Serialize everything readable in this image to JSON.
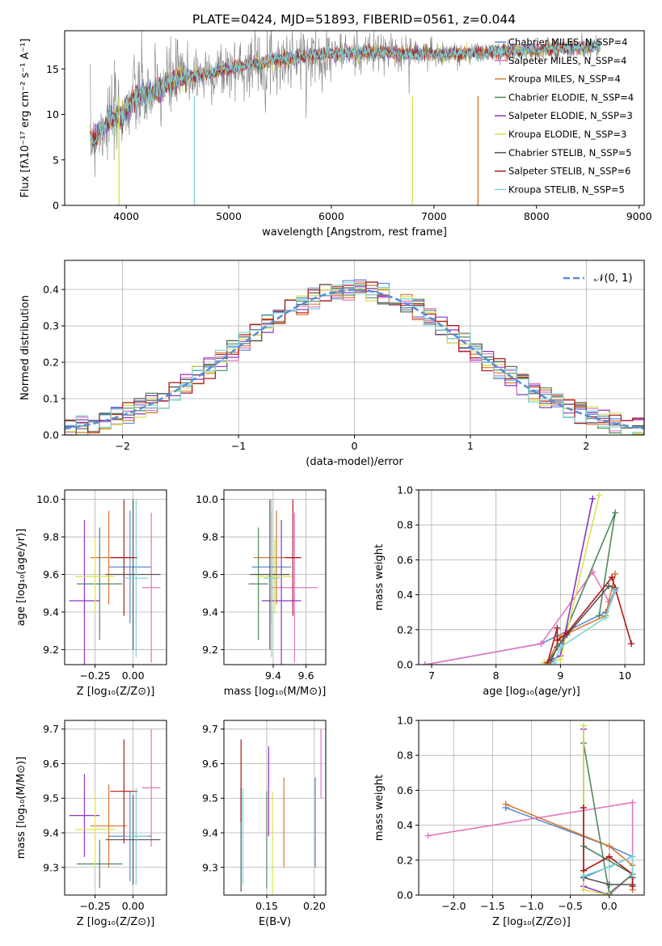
{
  "title": "PLATE=0424, MJD=51893, FIBERID=0561, z=0.044",
  "colors": {
    "Chabrier MILES": "#5b8dd6",
    "Salpeter MILES": "#e377c2",
    "Kroupa MILES": "#d9782d",
    "Chabrier ELODIE": "#4e8a5c",
    "Salpeter ELODIE": "#8e35c4",
    "Kroupa ELODIE": "#d8e350",
    "Chabrier STELIB": "#555555",
    "Salpeter STELIB": "#b01818",
    "Kroupa STELIB": "#7fd3d8",
    "data": "#7f7f7f"
  },
  "chart_data": [
    {
      "type": "line",
      "panel": "spectrum",
      "xlabel": "wavelength [Angstrom, rest frame]",
      "ylabel": "Flux [fλ10⁻¹⁷ erg cm⁻² s⁻¹ A⁻¹]",
      "xlim": [
        3400,
        9050
      ],
      "ylim": [
        0,
        19.2
      ],
      "xticks": [
        4000,
        5000,
        6000,
        7000,
        8000,
        9000
      ],
      "yticks": [
        0,
        5,
        10,
        15
      ],
      "spectrum_envelope": {
        "x": [
          3650,
          3800,
          3950,
          4100,
          4300,
          4500,
          4800,
          5200,
          5600,
          6000,
          6500,
          7000,
          7500,
          7900,
          8300,
          8600
        ],
        "y": [
          7,
          9,
          10,
          12,
          12.5,
          14,
          14.5,
          15.5,
          16.2,
          16.7,
          16.8,
          16.6,
          16.8,
          17.0,
          17.2,
          17.5
        ]
      },
      "legend_entries": [
        "Chabrier MILES, N_SSP=4",
        "Salpeter MILES, N_SSP=4",
        "Kroupa MILES, N_SSP=4",
        "Chabrier ELODIE, N_SSP=4",
        "Salpeter ELODIE, N_SSP=3",
        "Kroupa ELODIE, N_SSP=3",
        "Chabrier STELIB, N_SSP=5",
        "Salpeter STELIB, N_SSP=6",
        "Kroupa STELIB, N_SSP=5"
      ],
      "legend_placement": "top-right",
      "grid": false
    },
    {
      "type": "histogram",
      "panel": "residuals",
      "xlabel": "(data-model)/error",
      "ylabel": "Normed distribution",
      "xlim": [
        -2.5,
        2.5
      ],
      "ylim": [
        0,
        0.48
      ],
      "xticks": [
        -2,
        -1,
        0,
        1,
        2
      ],
      "yticks": [
        0.0,
        0.1,
        0.2,
        0.3,
        0.4
      ],
      "bin_width": 0.1,
      "reference_curve": "N(0,1)",
      "legend_entries": [
        "𝒩(0, 1)"
      ],
      "legend_placement": "top-right",
      "grid": true
    },
    {
      "type": "scatter",
      "panel": "age-vs-Z",
      "xlabel": "Z [log₁₀(Z/Z⊙)]",
      "ylabel": "age  [log₁₀(age/yr)]",
      "xlim": [
        -0.45,
        0.22
      ],
      "ylim": [
        9.12,
        10.05
      ],
      "xticks": [
        -0.25,
        0.0
      ],
      "yticks": [
        9.2,
        9.4,
        9.6,
        9.8,
        10.0
      ],
      "points": [
        {
          "model": "Chabrier MILES",
          "x": -0.02,
          "y": 9.64,
          "xerr": 0.14,
          "yerr": 0.3
        },
        {
          "model": "Salpeter MILES",
          "x": 0.12,
          "y": 9.53,
          "xerr": 0.06,
          "yerr": 0.4
        },
        {
          "model": "Kroupa MILES",
          "x": -0.16,
          "y": 9.69,
          "xerr": 0.12,
          "yerr": 0.25
        },
        {
          "model": "Chabrier ELODIE",
          "x": -0.22,
          "y": 9.55,
          "xerr": 0.15,
          "yerr": 0.3
        },
        {
          "model": "Salpeter ELODIE",
          "x": -0.32,
          "y": 9.46,
          "xerr": 0.1,
          "yerr": 0.43
        },
        {
          "model": "Kroupa ELODIE",
          "x": -0.25,
          "y": 9.59,
          "xerr": 0.13,
          "yerr": 0.2
        },
        {
          "model": "Chabrier STELIB",
          "x": 0.0,
          "y": 9.6,
          "xerr": 0.18,
          "yerr": 0.4
        },
        {
          "model": "Salpeter STELIB",
          "x": -0.06,
          "y": 9.69,
          "xerr": 0.09,
          "yerr": 0.31
        },
        {
          "model": "Kroupa STELIB",
          "x": 0.02,
          "y": 9.58,
          "xerr": 0.08,
          "yerr": 0.42
        }
      ],
      "grid": true
    },
    {
      "type": "scatter",
      "panel": "age-vs-mass",
      "xlabel": "mass [log₁₀(M/M⊙)]",
      "ylabel": "",
      "xlim": [
        9.1,
        9.72
      ],
      "ylim": [
        9.12,
        10.05
      ],
      "xticks": [
        9.4,
        9.6
      ],
      "yticks": [
        9.2,
        9.4,
        9.6,
        9.8,
        10.0
      ],
      "points": [
        {
          "model": "Chabrier MILES",
          "x": 9.39,
          "y": 9.64,
          "xerr": 0.12,
          "yerr": 0.3
        },
        {
          "model": "Salpeter MILES",
          "x": 9.53,
          "y": 9.53,
          "xerr": 0.14,
          "yerr": 0.4
        },
        {
          "model": "Kroupa MILES",
          "x": 9.42,
          "y": 9.69,
          "xerr": 0.14,
          "yerr": 0.25
        },
        {
          "model": "Chabrier ELODIE",
          "x": 9.31,
          "y": 9.55,
          "xerr": 0.06,
          "yerr": 0.3
        },
        {
          "model": "Salpeter ELODIE",
          "x": 9.45,
          "y": 9.46,
          "xerr": 0.12,
          "yerr": 0.43
        },
        {
          "model": "Kroupa ELODIE",
          "x": 9.41,
          "y": 9.59,
          "xerr": 0.11,
          "yerr": 0.2
        },
        {
          "model": "Chabrier STELIB",
          "x": 9.38,
          "y": 9.6,
          "xerr": 0.12,
          "yerr": 0.4
        },
        {
          "model": "Salpeter STELIB",
          "x": 9.52,
          "y": 9.69,
          "xerr": 0.05,
          "yerr": 0.31
        },
        {
          "model": "Kroupa STELIB",
          "x": 9.39,
          "y": 9.58,
          "xerr": 0.05,
          "yerr": 0.42
        }
      ],
      "grid": true
    },
    {
      "type": "line",
      "panel": "mass-weight-vs-age",
      "xlabel": "age  [log₁₀(age/yr)]",
      "ylabel": "mass weight",
      "xlim": [
        6.8,
        10.3
      ],
      "ylim": [
        0,
        1.0
      ],
      "xticks": [
        7,
        8,
        9,
        10
      ],
      "yticks": [
        0.0,
        0.2,
        0.4,
        0.6,
        0.8,
        1.0
      ],
      "series": [
        {
          "name": "Chabrier MILES",
          "x": [
            6.9,
            8.7,
            9.7,
            9.85
          ],
          "y": [
            0.0,
            0.12,
            0.3,
            0.43
          ]
        },
        {
          "name": "Salpeter MILES",
          "x": [
            6.9,
            8.7,
            9.5,
            9.75
          ],
          "y": [
            0.0,
            0.12,
            0.53,
            0.36
          ]
        },
        {
          "name": "Kroupa MILES",
          "x": [
            8.8,
            9.0,
            9.7,
            9.85
          ],
          "y": [
            0.01,
            0.16,
            0.28,
            0.52
          ]
        },
        {
          "name": "Chabrier ELODIE",
          "x": [
            8.8,
            9.0,
            9.85,
            9.6
          ],
          "y": [
            0.01,
            0.12,
            0.87,
            0.28
          ]
        },
        {
          "name": "Salpeter ELODIE",
          "x": [
            8.75,
            9.0,
            9.5
          ],
          "y": [
            0.01,
            0.05,
            0.95
          ]
        },
        {
          "name": "Kroupa ELODIE",
          "x": [
            8.75,
            9.0,
            9.6
          ],
          "y": [
            0.01,
            0.03,
            0.97
          ]
        },
        {
          "name": "Chabrier STELIB",
          "x": [
            8.85,
            8.95,
            9.1,
            9.75,
            9.85
          ],
          "y": [
            0.02,
            0.1,
            0.17,
            0.45,
            0.44
          ]
        },
        {
          "name": "Salpeter STELIB",
          "x": [
            8.8,
            8.95,
            8.95,
            9.1,
            9.8,
            10.1
          ],
          "y": [
            0.01,
            0.21,
            0.14,
            0.18,
            0.5,
            0.12
          ]
        },
        {
          "name": "Kroupa STELIB",
          "x": [
            8.9,
            9.0,
            9.7,
            9.85
          ],
          "y": [
            0.01,
            0.1,
            0.27,
            0.42
          ]
        }
      ],
      "grid": true
    },
    {
      "type": "scatter",
      "panel": "mass-vs-Z",
      "xlabel": "Z [log₁₀(Z/Z⊙)]",
      "ylabel": "mass [log₁₀(M/M⊙)]",
      "xlim": [
        -0.45,
        0.22
      ],
      "ylim": [
        9.22,
        9.725
      ],
      "xticks": [
        -0.25,
        0.0
      ],
      "yticks": [
        9.3,
        9.4,
        9.5,
        9.6,
        9.7
      ],
      "points": [
        {
          "model": "Chabrier MILES",
          "x": -0.02,
          "y": 9.39,
          "xerr": 0.14,
          "yerr": 0.13
        },
        {
          "model": "Salpeter MILES",
          "x": 0.12,
          "y": 9.53,
          "xerr": 0.06,
          "yerr": 0.17
        },
        {
          "model": "Kroupa MILES",
          "x": -0.16,
          "y": 9.42,
          "xerr": 0.12,
          "yerr": 0.12
        },
        {
          "model": "Chabrier ELODIE",
          "x": -0.22,
          "y": 9.31,
          "xerr": 0.15,
          "yerr": 0.07
        },
        {
          "model": "Salpeter ELODIE",
          "x": -0.32,
          "y": 9.45,
          "xerr": 0.1,
          "yerr": 0.12
        },
        {
          "model": "Kroupa ELODIE",
          "x": -0.25,
          "y": 9.41,
          "xerr": 0.13,
          "yerr": 0.11
        },
        {
          "model": "Chabrier STELIB",
          "x": 0.0,
          "y": 9.38,
          "xerr": 0.18,
          "yerr": 0.13
        },
        {
          "model": "Salpeter STELIB",
          "x": -0.06,
          "y": 9.52,
          "xerr": 0.09,
          "yerr": 0.15
        },
        {
          "model": "Kroupa STELIB",
          "x": 0.02,
          "y": 9.39,
          "xerr": 0.08,
          "yerr": 0.14
        }
      ],
      "grid": true
    },
    {
      "type": "scatter",
      "panel": "mass-vs-EBV",
      "xlabel": "E(B-V)",
      "ylabel": "",
      "xlim": [
        0.105,
        0.212
      ],
      "ylim": [
        9.22,
        9.725
      ],
      "xticks": [
        0.15,
        0.2
      ],
      "yticks": [
        9.3,
        9.4,
        9.5,
        9.6,
        9.7
      ],
      "points": [
        {
          "model": "Chabrier MILES",
          "x": 0.201,
          "y": 9.43,
          "yerr": 0.13
        },
        {
          "model": "Salpeter MILES",
          "x": 0.207,
          "y": 9.6,
          "yerr": 0.1
        },
        {
          "model": "Kroupa MILES",
          "x": 0.168,
          "y": 9.43,
          "yerr": 0.13
        },
        {
          "model": "Chabrier ELODIE",
          "x": 0.15,
          "y": 9.38,
          "yerr": 0.14
        },
        {
          "model": "Salpeter ELODIE",
          "x": 0.152,
          "y": 9.52,
          "yerr": 0.13
        },
        {
          "model": "Kroupa ELODIE",
          "x": 0.156,
          "y": 9.37,
          "yerr": 0.15
        },
        {
          "model": "Chabrier STELIB",
          "x": 0.123,
          "y": 9.38,
          "yerr": 0.15
        },
        {
          "model": "Salpeter STELIB",
          "x": 0.123,
          "y": 9.55,
          "yerr": 0.12
        },
        {
          "model": "Kroupa STELIB",
          "x": 0.125,
          "y": 9.39,
          "yerr": 0.14
        }
      ],
      "grid": true
    },
    {
      "type": "line",
      "panel": "mass-weight-vs-Z",
      "xlabel": "Z [log₁₀(Z/Z⊙)]",
      "ylabel": "mass weight",
      "xlim": [
        -2.45,
        0.45
      ],
      "ylim": [
        0,
        1.0
      ],
      "xticks": [
        -2.0,
        -1.5,
        -1.0,
        -0.5,
        0.0
      ],
      "yticks": [
        0.0,
        0.2,
        0.4,
        0.6,
        0.8,
        1.0
      ],
      "series": [
        {
          "name": "Chabrier MILES",
          "x": [
            -1.33,
            0.0,
            0.3,
            -0.33
          ],
          "y": [
            0.5,
            0.28,
            0.22,
            0.1
          ]
        },
        {
          "name": "Salpeter MILES",
          "x": [
            -2.33,
            0.3,
            0.3,
            0.0
          ],
          "y": [
            0.34,
            0.53,
            0.12,
            0.0
          ]
        },
        {
          "name": "Kroupa MILES",
          "x": [
            -1.33,
            0.0,
            0.3,
            0.3
          ],
          "y": [
            0.52,
            0.28,
            0.17,
            0.03
          ]
        },
        {
          "name": "Chabrier ELODIE",
          "x": [
            -0.33,
            0.0,
            0.3,
            -0.33
          ],
          "y": [
            0.87,
            0.01,
            0.12,
            0.28
          ]
        },
        {
          "name": "Salpeter ELODIE",
          "x": [
            -0.33,
            -0.33,
            0.0
          ],
          "y": [
            0.95,
            0.05,
            0.0
          ]
        },
        {
          "name": "Kroupa ELODIE",
          "x": [
            -0.33,
            -0.33,
            0.0
          ],
          "y": [
            0.97,
            0.03,
            0.0
          ]
        },
        {
          "name": "Chabrier STELIB",
          "x": [
            -0.33,
            0.0,
            0.3,
            0.3
          ],
          "y": [
            0.1,
            0.06,
            0.06,
            0.1
          ]
        },
        {
          "name": "Salpeter STELIB",
          "x": [
            -0.33,
            -0.33,
            0.0,
            0.3,
            0.3
          ],
          "y": [
            0.5,
            0.14,
            0.22,
            0.12,
            0.05
          ]
        },
        {
          "name": "Kroupa STELIB",
          "x": [
            -0.33,
            0.0,
            0.3,
            0.3
          ],
          "y": [
            0.11,
            0.16,
            0.22,
            0.12
          ]
        }
      ],
      "grid": true
    }
  ]
}
